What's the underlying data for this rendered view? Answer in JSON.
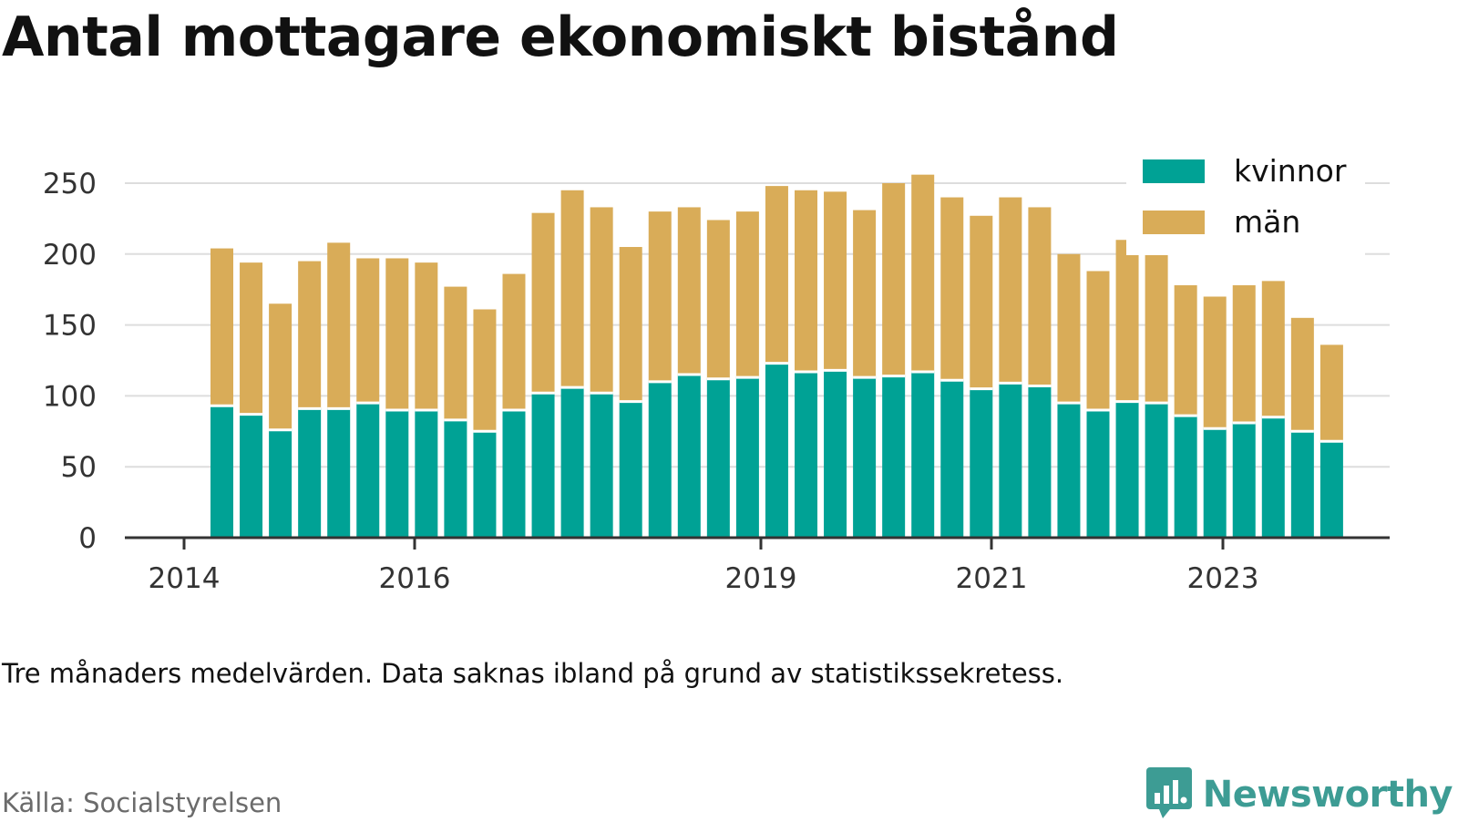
{
  "title": "Antal mottagare ekonomiskt bistånd",
  "note": "Tre månaders medelvärden. Data saknas ibland på grund av statistikssekretess.",
  "source": "Källa: Socialstyrelsen",
  "brand": {
    "name": "Newsworthy",
    "icon": "newsworthy-logo-icon",
    "color": "#3d9c94"
  },
  "colors": {
    "kvinnor": "#00a295",
    "man": "#d9ac58",
    "axis": "#333333",
    "grid": "#dddddd"
  },
  "chart_data": {
    "type": "bar",
    "stacked": true,
    "x_axis": {
      "ticks": [
        "2014",
        "2016",
        "2019",
        "2021",
        "2023"
      ]
    },
    "ylim": [
      0,
      250
    ],
    "y_ticks": [
      0,
      50,
      100,
      150,
      200,
      250
    ],
    "grid": true,
    "legend": "top-right",
    "series": [
      {
        "name": "kvinnor",
        "color": "#00a295",
        "values": [
          93,
          87,
          76,
          91,
          91,
          95,
          90,
          90,
          83,
          75,
          90,
          102,
          106,
          102,
          96,
          110,
          115,
          112,
          113,
          123,
          117,
          118,
          113,
          114,
          117,
          111,
          105,
          109,
          107,
          95,
          90,
          96,
          95,
          86,
          77,
          81,
          85,
          75,
          68
        ]
      },
      {
        "name": "män",
        "color": "#d9ac58",
        "values": [
          111,
          107,
          89,
          104,
          117,
          102,
          107,
          104,
          94,
          86,
          96,
          127,
          139,
          131,
          109,
          120,
          118,
          112,
          117,
          125,
          128,
          126,
          118,
          136,
          139,
          129,
          122,
          131,
          126,
          105,
          98,
          114,
          105,
          92,
          93,
          97,
          96,
          80,
          68
        ]
      }
    ]
  }
}
